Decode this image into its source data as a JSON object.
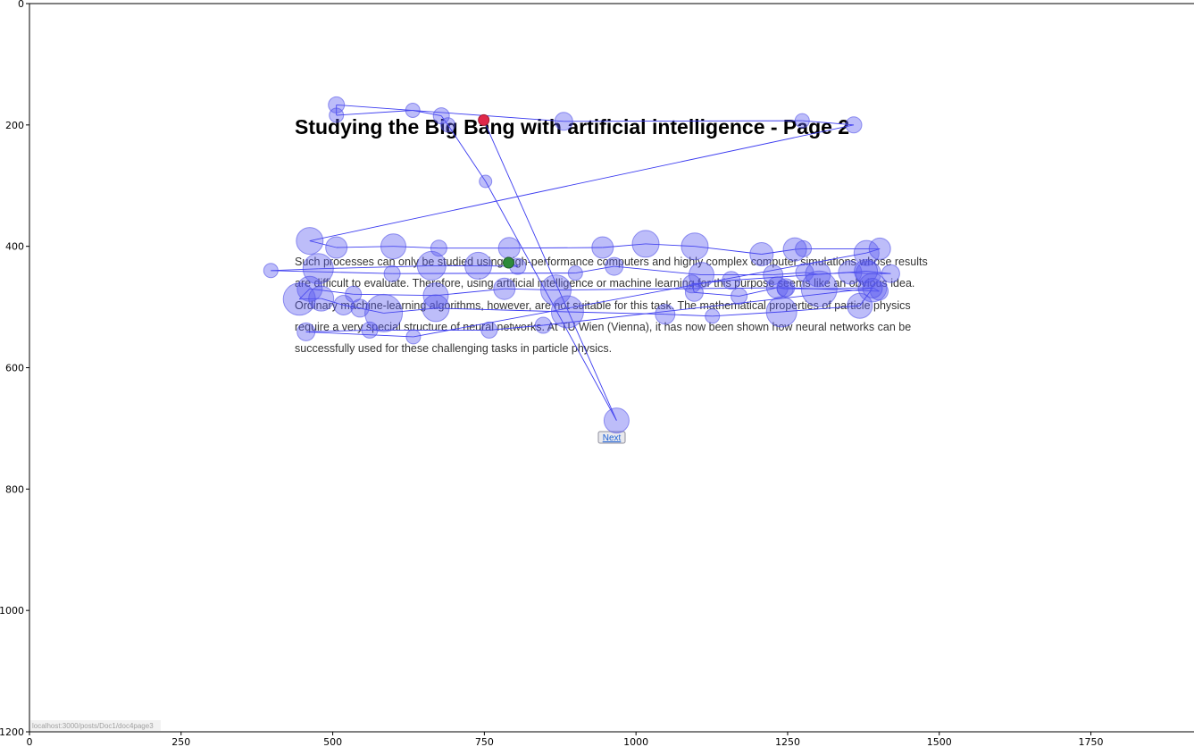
{
  "page": {
    "title": "Studying the Big Bang with artificial intelligence - Page 2",
    "paragraph_lines": [
      "Such processes can only be studied using high-performance computers and highly complex computer simulations whose results",
      "are difficult to evaluate. Therefore, using artificial intelligence or machine learning for this purpose seems like an obvious idea.",
      "Ordinary machine-learning algorithms, however, are not suitable for this task. The mathematical properties of particle physics",
      "require a very special structure of neural networks. At TU Wien (Vienna), it has now been shown how neural networks can be",
      "successfully used for these challenging tasks in particle physics."
    ],
    "next_button": "Next",
    "status_url": "localhost:3000/posts/Doc1/doc4page3"
  },
  "chart_data": {
    "type": "scatter",
    "subtype": "gaze-scanpath",
    "xlim": [
      0,
      1920
    ],
    "ylim": [
      1200,
      0
    ],
    "xticks": [
      0,
      250,
      500,
      750,
      1000,
      1250,
      1500,
      1750
    ],
    "yticks": [
      0,
      200,
      400,
      600,
      800,
      1000,
      1200
    ],
    "colors": {
      "fixation": "#5a5af0",
      "saccade": "#3b3bf0",
      "start": "#2e8b3a",
      "end": "#e0284a"
    },
    "fixations": [
      {
        "x": 790,
        "y": 427,
        "r": 9
      },
      {
        "x": 805,
        "y": 433,
        "r": 9
      },
      {
        "x": 740,
        "y": 432,
        "r": 15
      },
      {
        "x": 663,
        "y": 432,
        "r": 16
      },
      {
        "x": 476,
        "y": 437,
        "r": 17
      },
      {
        "x": 398,
        "y": 440,
        "r": 8
      },
      {
        "x": 598,
        "y": 445,
        "r": 9
      },
      {
        "x": 900,
        "y": 444,
        "r": 8
      },
      {
        "x": 964,
        "y": 433,
        "r": 10
      },
      {
        "x": 1108,
        "y": 447,
        "r": 14
      },
      {
        "x": 1226,
        "y": 447,
        "r": 11
      },
      {
        "x": 1278,
        "y": 443,
        "r": 10
      },
      {
        "x": 1300,
        "y": 446,
        "r": 14
      },
      {
        "x": 1353,
        "y": 443,
        "r": 13
      },
      {
        "x": 1383,
        "y": 445,
        "r": 14
      },
      {
        "x": 1420,
        "y": 445,
        "r": 10
      },
      {
        "x": 1379,
        "y": 441,
        "r": 13
      },
      {
        "x": 1157,
        "y": 456,
        "r": 10
      },
      {
        "x": 1092,
        "y": 462,
        "r": 10
      },
      {
        "x": 1096,
        "y": 476,
        "r": 10
      },
      {
        "x": 1170,
        "y": 482,
        "r": 9
      },
      {
        "x": 1233,
        "y": 468,
        "r": 12
      },
      {
        "x": 1246,
        "y": 470,
        "r": 9
      },
      {
        "x": 1302,
        "y": 470,
        "r": 20
      },
      {
        "x": 1390,
        "y": 468,
        "r": 16
      },
      {
        "x": 1401,
        "y": 474,
        "r": 10
      },
      {
        "x": 1247,
        "y": 468,
        "r": 10
      },
      {
        "x": 868,
        "y": 472,
        "r": 17
      },
      {
        "x": 783,
        "y": 470,
        "r": 12
      },
      {
        "x": 670,
        "y": 481,
        "r": 14
      },
      {
        "x": 534,
        "y": 479,
        "r": 9
      },
      {
        "x": 462,
        "y": 470,
        "r": 14
      },
      {
        "x": 445,
        "y": 487,
        "r": 18
      },
      {
        "x": 481,
        "y": 486,
        "r": 14
      },
      {
        "x": 518,
        "y": 497,
        "r": 11
      },
      {
        "x": 545,
        "y": 502,
        "r": 10
      },
      {
        "x": 584,
        "y": 510,
        "r": 21
      },
      {
        "x": 670,
        "y": 502,
        "r": 15
      },
      {
        "x": 887,
        "y": 508,
        "r": 18
      },
      {
        "x": 1048,
        "y": 512,
        "r": 11
      },
      {
        "x": 1126,
        "y": 515,
        "r": 8
      },
      {
        "x": 1240,
        "y": 508,
        "r": 17
      },
      {
        "x": 1369,
        "y": 498,
        "r": 14
      },
      {
        "x": 1390,
        "y": 469,
        "r": 11
      },
      {
        "x": 847,
        "y": 530,
        "r": 9
      },
      {
        "x": 758,
        "y": 538,
        "r": 9
      },
      {
        "x": 561,
        "y": 538,
        "r": 9
      },
      {
        "x": 456,
        "y": 541,
        "r": 10
      },
      {
        "x": 633,
        "y": 549,
        "r": 8
      },
      {
        "x": 1380,
        "y": 411,
        "r": 14
      },
      {
        "x": 1402,
        "y": 404,
        "r": 12
      },
      {
        "x": 1276,
        "y": 404,
        "r": 9
      },
      {
        "x": 1262,
        "y": 405,
        "r": 13
      },
      {
        "x": 1207,
        "y": 413,
        "r": 13
      },
      {
        "x": 1097,
        "y": 400,
        "r": 15
      },
      {
        "x": 1016,
        "y": 396,
        "r": 15
      },
      {
        "x": 945,
        "y": 402,
        "r": 12
      },
      {
        "x": 791,
        "y": 403,
        "r": 12
      },
      {
        "x": 675,
        "y": 403,
        "r": 9
      },
      {
        "x": 600,
        "y": 400,
        "r": 14
      },
      {
        "x": 506,
        "y": 402,
        "r": 12
      },
      {
        "x": 462,
        "y": 391,
        "r": 15
      },
      {
        "x": 1359,
        "y": 200,
        "r": 9
      },
      {
        "x": 1274,
        "y": 193,
        "r": 8
      },
      {
        "x": 881,
        "y": 194,
        "r": 10
      },
      {
        "x": 506,
        "y": 167,
        "r": 9
      },
      {
        "x": 506,
        "y": 184,
        "r": 8
      },
      {
        "x": 632,
        "y": 176,
        "r": 8
      },
      {
        "x": 679,
        "y": 185,
        "r": 9
      },
      {
        "x": 690,
        "y": 200,
        "r": 8
      },
      {
        "x": 752,
        "y": 293,
        "r": 7
      },
      {
        "x": 968,
        "y": 687,
        "r": 14
      },
      {
        "x": 749,
        "y": 192,
        "r": 7
      }
    ],
    "start_index": 0,
    "end_index": 72
  }
}
